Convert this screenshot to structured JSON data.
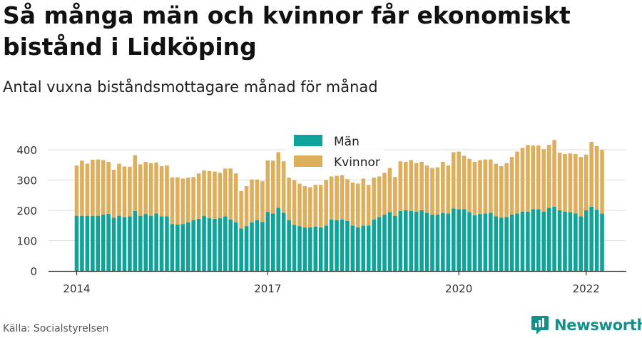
{
  "header": {
    "title": "Så många män och kvinnor får ekonomiskt bistånd i Lidköping",
    "subtitle": "Antal vuxna biståndsmottagare månad för månad"
  },
  "footer": {
    "source": "Källa: Socialstyrelsen",
    "brand": "Newsworthy"
  },
  "colors": {
    "men": "#0fa39a",
    "women": "#ddaf5c",
    "grid": "#dddddd",
    "axis": "#333333"
  },
  "chart_data": {
    "type": "bar",
    "stacked": true,
    "title": "Så många män och kvinnor får ekonomiskt bistånd i Lidköping",
    "subtitle": "Antal vuxna biståndsmottagare månad för månad",
    "xlabel": "",
    "ylabel": "",
    "ylim": [
      0,
      420
    ],
    "yticks": [
      0,
      100,
      200,
      300,
      400
    ],
    "xticks": [
      {
        "label": "2014",
        "index": 0
      },
      {
        "label": "2017",
        "index": 36
      },
      {
        "label": "2020",
        "index": 72
      },
      {
        "label": "2022",
        "index": 96
      }
    ],
    "grid": true,
    "legend": "top-center",
    "start_month": "2014-01",
    "series": [
      {
        "name": "Män",
        "values": [
          182,
          182,
          182,
          182,
          182,
          186,
          188,
          176,
          182,
          178,
          180,
          198,
          182,
          188,
          182,
          190,
          180,
          180,
          155,
          153,
          155,
          160,
          168,
          172,
          182,
          174,
          172,
          174,
          180,
          170,
          160,
          140,
          148,
          160,
          168,
          162,
          195,
          190,
          208,
          192,
          168,
          152,
          148,
          144,
          144,
          146,
          144,
          150,
          170,
          168,
          170,
          165,
          150,
          144,
          150,
          150,
          170,
          178,
          186,
          194,
          182,
          198,
          200,
          198,
          196,
          200,
          192,
          186,
          186,
          192,
          190,
          206,
          204,
          204,
          194,
          184,
          188,
          190,
          192,
          180,
          176,
          178,
          186,
          190,
          196,
          196,
          204,
          204,
          196,
          208,
          212,
          200,
          196,
          194,
          190,
          180,
          200,
          212,
          202,
          190
        ],
        "color": "#0fa39a"
      },
      {
        "name": "Kvinnor",
        "values": [
          166,
          182,
          172,
          185,
          186,
          180,
          172,
          158,
          172,
          167,
          164,
          184,
          170,
          172,
          174,
          168,
          166,
          168,
          154,
          156,
          150,
          148,
          142,
          150,
          150,
          156,
          156,
          150,
          158,
          168,
          162,
          124,
          132,
          142,
          134,
          134,
          170,
          174,
          184,
          170,
          140,
          148,
          140,
          136,
          132,
          138,
          140,
          150,
          142,
          146,
          146,
          138,
          142,
          144,
          155,
          134,
          138,
          134,
          138,
          146,
          128,
          164,
          160,
          168,
          160,
          160,
          156,
          154,
          156,
          168,
          158,
          186,
          190,
          176,
          176,
          176,
          178,
          178,
          176,
          174,
          170,
          178,
          190,
          204,
          210,
          220,
          210,
          210,
          206,
          208,
          220,
          190,
          190,
          194,
          196,
          196,
          184,
          214,
          210,
          210
        ],
        "color": "#ddaf5c"
      }
    ]
  }
}
